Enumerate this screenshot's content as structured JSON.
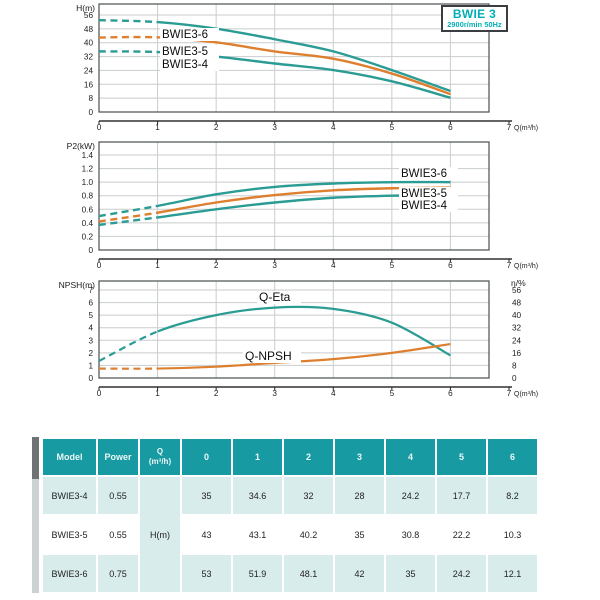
{
  "title_box": {
    "model": "BWIE 3",
    "speed": "2900r/min 50Hz"
  },
  "colors": {
    "teal_curve": "#2a9c94",
    "orange_curve": "#dd7f2e",
    "title_teal": "#00afb5",
    "grid": "#c9cdce",
    "plot_border": "#4a4f52",
    "axis": "#2f3133",
    "tick_text": "#1c1c1c",
    "table_header_bg": "#189aa2",
    "table_header_text": "#eaf7f7",
    "table_row_alt_bg": "#d8eceb",
    "table_text": "#222222"
  },
  "chart_data": [
    {
      "type": "line",
      "name": "head-vs-flow",
      "title": "",
      "ylabel": "H(m)",
      "xlabel": "Q(m³/h)",
      "xlim": [
        0,
        7
      ],
      "ylim": [
        0,
        56
      ],
      "xticks": [
        "0",
        "1",
        "2",
        "3",
        "4",
        "5",
        "6",
        "7"
      ],
      "yticks": [
        "0",
        "8",
        "16",
        "24",
        "32",
        "40",
        "48",
        "56"
      ],
      "grid": true,
      "x": [
        0,
        1,
        2,
        3,
        4,
        5,
        6
      ],
      "series": [
        {
          "name": "BWIE3-6",
          "color": "#2a9c94",
          "dashed_before_x": 1,
          "values": [
            53,
            51.9,
            48.1,
            42,
            35,
            24.2,
            12.1
          ]
        },
        {
          "name": "BWIE3-5",
          "color": "#dd7f2e",
          "dashed_before_x": 1,
          "values": [
            43,
            43.1,
            40.2,
            35,
            30.8,
            22.2,
            10.3
          ]
        },
        {
          "name": "BWIE3-4",
          "color": "#2a9c94",
          "dashed_before_x": 1,
          "values": [
            35,
            34.6,
            32,
            28,
            24.2,
            17.7,
            8.2
          ]
        }
      ]
    },
    {
      "type": "line",
      "name": "power-vs-flow",
      "title": "",
      "ylabel": "P2(kW)",
      "xlabel": "Q(m³/h)",
      "xlim": [
        0,
        7
      ],
      "ylim": [
        0,
        1.4
      ],
      "xticks": [
        "0",
        "1",
        "2",
        "3",
        "4",
        "5",
        "6",
        "7"
      ],
      "yticks": [
        "0",
        "0.2",
        "0.4",
        "0.6",
        "0.8",
        "1.0",
        "1.2",
        "1.4"
      ],
      "grid": true,
      "x": [
        0,
        1,
        2,
        3,
        4,
        5,
        6
      ],
      "series": [
        {
          "name": "BWIE3-6",
          "color": "#2a9c94",
          "dashed_before_x": 1,
          "values": [
            0.5,
            0.65,
            0.82,
            0.93,
            0.98,
            1.0,
            1.0
          ]
        },
        {
          "name": "BWIE3-5",
          "color": "#dd7f2e",
          "dashed_before_x": 1,
          "values": [
            0.42,
            0.55,
            0.7,
            0.81,
            0.88,
            0.91,
            0.92
          ]
        },
        {
          "name": "BWIE3-4",
          "color": "#2a9c94",
          "dashed_before_x": 1,
          "values": [
            0.37,
            0.48,
            0.6,
            0.7,
            0.77,
            0.8,
            0.81
          ]
        }
      ]
    },
    {
      "type": "line",
      "name": "npsh-eta-vs-flow",
      "title": "",
      "ylabel": "NPSH(m)",
      "xlabel": "Q(m³/h)",
      "xlim": [
        0,
        7
      ],
      "ylim": [
        0,
        7
      ],
      "xticks": [
        "0",
        "1",
        "2",
        "3",
        "4",
        "5",
        "6",
        "7"
      ],
      "yticks": [
        "0",
        "1",
        "2",
        "3",
        "4",
        "5",
        "6",
        "7"
      ],
      "right_axis": {
        "label": "η/%",
        "ticks": [
          "0",
          "8",
          "16",
          "24",
          "32",
          "40",
          "48",
          "56"
        ],
        "scale_to_left": 0.125
      },
      "grid": true,
      "x": [
        0,
        1,
        2,
        3,
        4,
        5,
        6
      ],
      "series": [
        {
          "name": "Q-Eta",
          "color": "#2a9c94",
          "dashed_before_x": 1,
          "values": [
            1.35,
            3.7,
            5.0,
            5.6,
            5.5,
            4.4,
            1.8
          ],
          "values_eta_pct": [
            10.8,
            29.6,
            40,
            44.8,
            44,
            35.2,
            14.4
          ]
        },
        {
          "name": "Q-NPSH",
          "color": "#dd7f2e",
          "dashed_before_x": 1,
          "values": [
            0.75,
            0.75,
            0.9,
            1.2,
            1.5,
            2.0,
            2.7
          ]
        }
      ]
    }
  ],
  "table": {
    "headers": [
      "Model",
      "Power",
      "Q\n(m³/h)",
      "0",
      "1",
      "2",
      "3",
      "4",
      "5",
      "6"
    ],
    "unit_cell": "H(m)",
    "rows": [
      {
        "model": "BWIE3-4",
        "power": "0.55",
        "values": [
          "35",
          "34.6",
          "32",
          "28",
          "24.2",
          "17.7",
          "8.2"
        ]
      },
      {
        "model": "BWIE3-5",
        "power": "0.55",
        "values": [
          "43",
          "43.1",
          "40.2",
          "35",
          "30.8",
          "22.2",
          "10.3"
        ]
      },
      {
        "model": "BWIE3-6",
        "power": "0.75",
        "values": [
          "53",
          "51.9",
          "48.1",
          "42",
          "35",
          "24.2",
          "12.1"
        ]
      }
    ]
  }
}
